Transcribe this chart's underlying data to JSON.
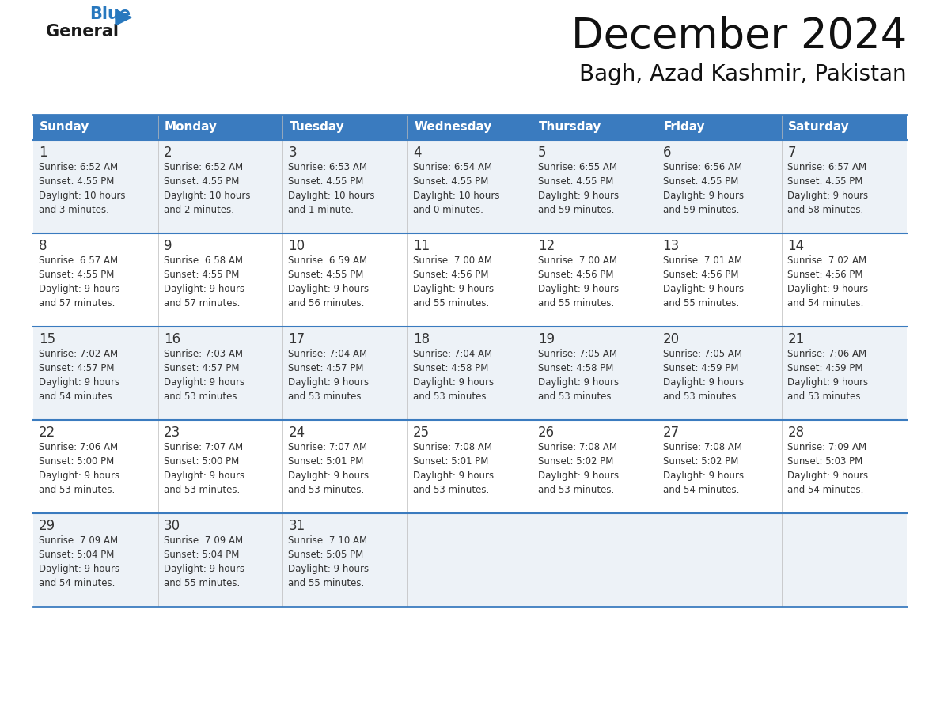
{
  "title": "December 2024",
  "subtitle": "Bagh, Azad Kashmir, Pakistan",
  "days_of_week": [
    "Sunday",
    "Monday",
    "Tuesday",
    "Wednesday",
    "Thursday",
    "Friday",
    "Saturday"
  ],
  "header_bg": "#3a7bbf",
  "header_text": "#ffffff",
  "row_bg_odd": "#edf2f7",
  "row_bg_even": "#ffffff",
  "border_color": "#3a7bbf",
  "title_color": "#1a1a1a",
  "cell_text_color": "#333333",
  "logo_general_color": "#1a1a1a",
  "logo_blue_color": "#2878be",
  "calendar_data": [
    [
      {
        "day": 1,
        "sunrise": "6:52 AM",
        "sunset": "4:55 PM",
        "daylight_l1": "10 hours",
        "daylight_l2": "and 3 minutes."
      },
      {
        "day": 2,
        "sunrise": "6:52 AM",
        "sunset": "4:55 PM",
        "daylight_l1": "10 hours",
        "daylight_l2": "and 2 minutes."
      },
      {
        "day": 3,
        "sunrise": "6:53 AM",
        "sunset": "4:55 PM",
        "daylight_l1": "10 hours",
        "daylight_l2": "and 1 minute."
      },
      {
        "day": 4,
        "sunrise": "6:54 AM",
        "sunset": "4:55 PM",
        "daylight_l1": "10 hours",
        "daylight_l2": "and 0 minutes."
      },
      {
        "day": 5,
        "sunrise": "6:55 AM",
        "sunset": "4:55 PM",
        "daylight_l1": "9 hours",
        "daylight_l2": "and 59 minutes."
      },
      {
        "day": 6,
        "sunrise": "6:56 AM",
        "sunset": "4:55 PM",
        "daylight_l1": "9 hours",
        "daylight_l2": "and 59 minutes."
      },
      {
        "day": 7,
        "sunrise": "6:57 AM",
        "sunset": "4:55 PM",
        "daylight_l1": "9 hours",
        "daylight_l2": "and 58 minutes."
      }
    ],
    [
      {
        "day": 8,
        "sunrise": "6:57 AM",
        "sunset": "4:55 PM",
        "daylight_l1": "9 hours",
        "daylight_l2": "and 57 minutes."
      },
      {
        "day": 9,
        "sunrise": "6:58 AM",
        "sunset": "4:55 PM",
        "daylight_l1": "9 hours",
        "daylight_l2": "and 57 minutes."
      },
      {
        "day": 10,
        "sunrise": "6:59 AM",
        "sunset": "4:55 PM",
        "daylight_l1": "9 hours",
        "daylight_l2": "and 56 minutes."
      },
      {
        "day": 11,
        "sunrise": "7:00 AM",
        "sunset": "4:56 PM",
        "daylight_l1": "9 hours",
        "daylight_l2": "and 55 minutes."
      },
      {
        "day": 12,
        "sunrise": "7:00 AM",
        "sunset": "4:56 PM",
        "daylight_l1": "9 hours",
        "daylight_l2": "and 55 minutes."
      },
      {
        "day": 13,
        "sunrise": "7:01 AM",
        "sunset": "4:56 PM",
        "daylight_l1": "9 hours",
        "daylight_l2": "and 55 minutes."
      },
      {
        "day": 14,
        "sunrise": "7:02 AM",
        "sunset": "4:56 PM",
        "daylight_l1": "9 hours",
        "daylight_l2": "and 54 minutes."
      }
    ],
    [
      {
        "day": 15,
        "sunrise": "7:02 AM",
        "sunset": "4:57 PM",
        "daylight_l1": "9 hours",
        "daylight_l2": "and 54 minutes."
      },
      {
        "day": 16,
        "sunrise": "7:03 AM",
        "sunset": "4:57 PM",
        "daylight_l1": "9 hours",
        "daylight_l2": "and 53 minutes."
      },
      {
        "day": 17,
        "sunrise": "7:04 AM",
        "sunset": "4:57 PM",
        "daylight_l1": "9 hours",
        "daylight_l2": "and 53 minutes."
      },
      {
        "day": 18,
        "sunrise": "7:04 AM",
        "sunset": "4:58 PM",
        "daylight_l1": "9 hours",
        "daylight_l2": "and 53 minutes."
      },
      {
        "day": 19,
        "sunrise": "7:05 AM",
        "sunset": "4:58 PM",
        "daylight_l1": "9 hours",
        "daylight_l2": "and 53 minutes."
      },
      {
        "day": 20,
        "sunrise": "7:05 AM",
        "sunset": "4:59 PM",
        "daylight_l1": "9 hours",
        "daylight_l2": "and 53 minutes."
      },
      {
        "day": 21,
        "sunrise": "7:06 AM",
        "sunset": "4:59 PM",
        "daylight_l1": "9 hours",
        "daylight_l2": "and 53 minutes."
      }
    ],
    [
      {
        "day": 22,
        "sunrise": "7:06 AM",
        "sunset": "5:00 PM",
        "daylight_l1": "9 hours",
        "daylight_l2": "and 53 minutes."
      },
      {
        "day": 23,
        "sunrise": "7:07 AM",
        "sunset": "5:00 PM",
        "daylight_l1": "9 hours",
        "daylight_l2": "and 53 minutes."
      },
      {
        "day": 24,
        "sunrise": "7:07 AM",
        "sunset": "5:01 PM",
        "daylight_l1": "9 hours",
        "daylight_l2": "and 53 minutes."
      },
      {
        "day": 25,
        "sunrise": "7:08 AM",
        "sunset": "5:01 PM",
        "daylight_l1": "9 hours",
        "daylight_l2": "and 53 minutes."
      },
      {
        "day": 26,
        "sunrise": "7:08 AM",
        "sunset": "5:02 PM",
        "daylight_l1": "9 hours",
        "daylight_l2": "and 53 minutes."
      },
      {
        "day": 27,
        "sunrise": "7:08 AM",
        "sunset": "5:02 PM",
        "daylight_l1": "9 hours",
        "daylight_l2": "and 54 minutes."
      },
      {
        "day": 28,
        "sunrise": "7:09 AM",
        "sunset": "5:03 PM",
        "daylight_l1": "9 hours",
        "daylight_l2": "and 54 minutes."
      }
    ],
    [
      {
        "day": 29,
        "sunrise": "7:09 AM",
        "sunset": "5:04 PM",
        "daylight_l1": "9 hours",
        "daylight_l2": "and 54 minutes."
      },
      {
        "day": 30,
        "sunrise": "7:09 AM",
        "sunset": "5:04 PM",
        "daylight_l1": "9 hours",
        "daylight_l2": "and 55 minutes."
      },
      {
        "day": 31,
        "sunrise": "7:10 AM",
        "sunset": "5:05 PM",
        "daylight_l1": "9 hours",
        "daylight_l2": "and 55 minutes."
      },
      null,
      null,
      null,
      null
    ]
  ]
}
